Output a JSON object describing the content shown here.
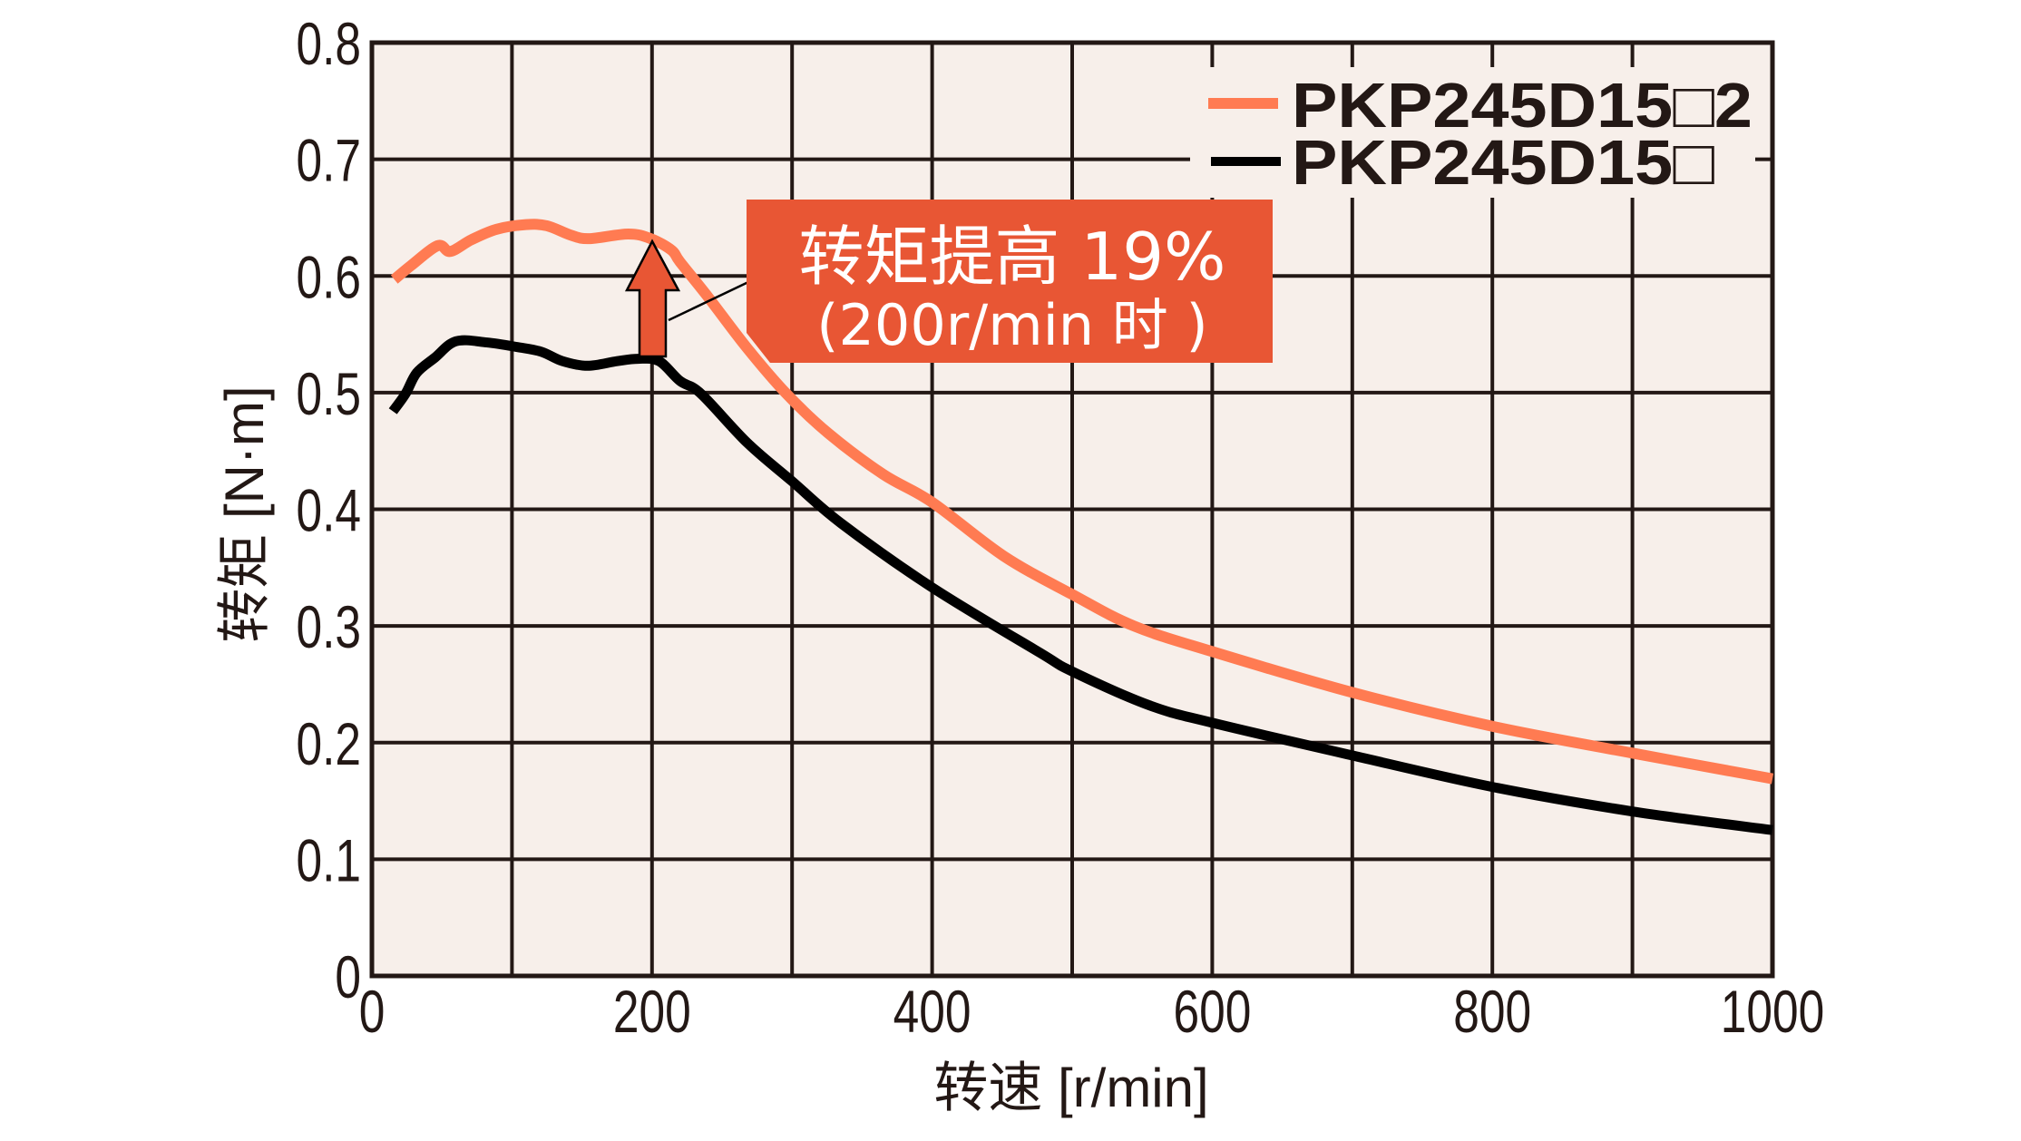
{
  "chart_data": {
    "type": "line",
    "title": "",
    "xlabel": "转速 [r/min]",
    "ylabel": "转矩 [N·m]",
    "xlim": [
      0,
      1000
    ],
    "ylim": [
      0,
      0.8
    ],
    "x_ticks": [
      "0",
      "200",
      "400",
      "600",
      "800",
      "1000"
    ],
    "x_tick_values": [
      0,
      200,
      400,
      600,
      800,
      1000
    ],
    "y_ticks": [
      "0",
      "0.1",
      "0.2",
      "0.3",
      "0.4",
      "0.5",
      "0.6",
      "0.7",
      "0.8"
    ],
    "y_tick_values": [
      0,
      0.1,
      0.2,
      0.3,
      0.4,
      0.5,
      0.6,
      0.7,
      0.8
    ],
    "grid": true,
    "grid_x_step": 100,
    "grid_y_step": 0.1,
    "legend_position": "upper right",
    "series": [
      {
        "name": "PKP245D15□2",
        "color": "#FF7B52",
        "x": [
          16,
          28,
          47,
          56,
          71,
          89,
          110,
          125,
          142,
          155,
          183,
          199,
          214,
          220,
          240,
          268,
          296,
          326,
          365,
          400,
          451,
          500,
          544,
          600,
          700,
          800,
          900,
          1000
        ],
        "y": [
          0.597,
          0.609,
          0.626,
          0.621,
          0.631,
          0.64,
          0.644,
          0.643,
          0.635,
          0.632,
          0.636,
          0.632,
          0.622,
          0.612,
          0.582,
          0.538,
          0.499,
          0.465,
          0.43,
          0.406,
          0.36,
          0.327,
          0.3,
          0.278,
          0.243,
          0.214,
          0.191,
          0.169
        ]
      },
      {
        "name": "PKP245D15□",
        "color": "#000000",
        "x": [
          15,
          24,
          32,
          45,
          60,
          82,
          104,
          121,
          136,
          154,
          175,
          190,
          205,
          220,
          235,
          268,
          300,
          335,
          400,
          477,
          500,
          555,
          600,
          700,
          800,
          900,
          1000
        ],
        "y": [
          0.484,
          0.499,
          0.517,
          0.53,
          0.544,
          0.543,
          0.539,
          0.535,
          0.527,
          0.523,
          0.527,
          0.529,
          0.527,
          0.51,
          0.499,
          0.457,
          0.424,
          0.388,
          0.333,
          0.277,
          0.261,
          0.232,
          0.217,
          0.189,
          0.162,
          0.141,
          0.125
        ]
      }
    ],
    "annotations": [
      {
        "type": "arrow",
        "x": 200,
        "from_y": 0.53,
        "to_y": 0.63,
        "color": "#E85634"
      },
      {
        "type": "callout",
        "line1": "转矩提高 19%",
        "line2": "(200r/min 时 )",
        "background": "#E85634",
        "text_color": "#FFFFFF"
      }
    ]
  },
  "colors": {
    "plot_background": "#F7EFEA",
    "grid": "#231815",
    "accent": "#E85634",
    "series_1": "#FF7B52",
    "series_2": "#000000"
  }
}
